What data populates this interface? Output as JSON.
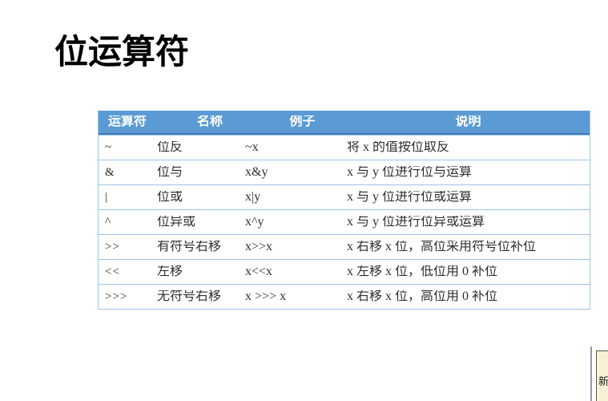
{
  "title": "位运算符",
  "table": {
    "headers": [
      "运算符",
      "名称",
      "例子",
      "说明"
    ],
    "rows": [
      [
        "~",
        "位反",
        "~x",
        "将 x 的值按位取反"
      ],
      [
        "&",
        "位与",
        "x&y",
        "x 与 y 位进行位与运算"
      ],
      [
        "|",
        "位或",
        "x|y",
        "x 与 y 位进行位或运算"
      ],
      [
        "^",
        "位异或",
        "x^y",
        "x 与 y 位进行位异或运算"
      ],
      [
        ">>",
        "有符号右移",
        "x>>x",
        "x 右移 x 位，高位采用符号位补位"
      ],
      [
        "<<",
        "左移",
        "x<<x",
        "x 左移 x 位，低位用 0 补位"
      ],
      [
        ">>>",
        "无符号右移",
        "x >>> x",
        "x 右移 x 位，高位用 0 补位"
      ]
    ]
  },
  "corner_note": {
    "label": "新"
  },
  "colors": {
    "header_bg": "#5B9BD5",
    "header_text": "#FFFFFF",
    "row_border": "#9DC3E6",
    "header_rule": "#3D7AB5",
    "note_bg": "#F8F1D8"
  }
}
